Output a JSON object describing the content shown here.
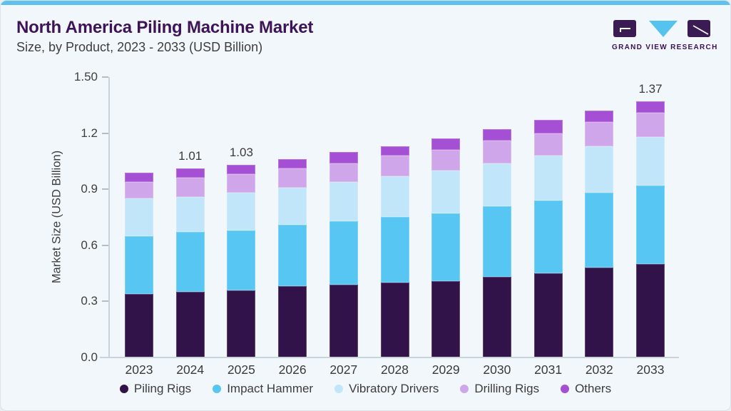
{
  "page": {
    "accent_bar_color": "#5ec1ec",
    "background_color": "#f2f7fb",
    "title_color": "#3d1458"
  },
  "header": {
    "title": "North America Piling Machine Market",
    "subtitle": "Size, by Product, 2023 - 2033 (USD Billion)"
  },
  "logo": {
    "text": "GRAND VIEW RESEARCH",
    "dark_color": "#3b1b53",
    "blue_color": "#56c3ef"
  },
  "chart_data": {
    "type": "bar",
    "stacked": true,
    "title": "North America Piling Machine Market Size, by Product, 2023 - 2033 (USD Billion)",
    "xlabel": "",
    "ylabel": "Market Size (USD Billion)",
    "ylim": [
      0,
      1.5
    ],
    "grid": false,
    "legend_position": "bottom",
    "ytick_labels": [
      "1.50",
      "1.2",
      "0.9",
      "0.6",
      "0.3",
      "0.0"
    ],
    "ytick_values": [
      1.5,
      1.2,
      0.9,
      0.6,
      0.3,
      0.0
    ],
    "categories": [
      "2023",
      "2024",
      "2025",
      "2026",
      "2027",
      "2028",
      "2029",
      "2030",
      "2031",
      "2032",
      "2033"
    ],
    "series": [
      {
        "name": "Piling Rigs",
        "color": "#321349",
        "values": [
          0.34,
          0.35,
          0.36,
          0.38,
          0.39,
          0.4,
          0.41,
          0.43,
          0.45,
          0.48,
          0.5
        ]
      },
      {
        "name": "Impact Hammer",
        "color": "#57c6f2",
        "values": [
          0.31,
          0.32,
          0.32,
          0.33,
          0.34,
          0.35,
          0.36,
          0.38,
          0.39,
          0.4,
          0.42
        ]
      },
      {
        "name": "Vibratory Drivers",
        "color": "#c1e6f9",
        "values": [
          0.2,
          0.19,
          0.2,
          0.2,
          0.21,
          0.22,
          0.23,
          0.23,
          0.24,
          0.25,
          0.26
        ]
      },
      {
        "name": "Drilling Rigs",
        "color": "#cfa6e9",
        "values": [
          0.09,
          0.1,
          0.1,
          0.1,
          0.1,
          0.11,
          0.11,
          0.12,
          0.12,
          0.13,
          0.13
        ]
      },
      {
        "name": "Others",
        "color": "#a44fd4",
        "values": [
          0.05,
          0.05,
          0.05,
          0.05,
          0.06,
          0.05,
          0.06,
          0.06,
          0.07,
          0.06,
          0.06
        ]
      }
    ],
    "totals": [
      0.99,
      1.01,
      1.03,
      1.06,
      1.1,
      1.13,
      1.17,
      1.22,
      1.27,
      1.32,
      1.37
    ],
    "value_labels": [
      "",
      "1.01",
      "1.03",
      "",
      "",
      "",
      "",
      "",
      "",
      "",
      "1.37"
    ]
  }
}
